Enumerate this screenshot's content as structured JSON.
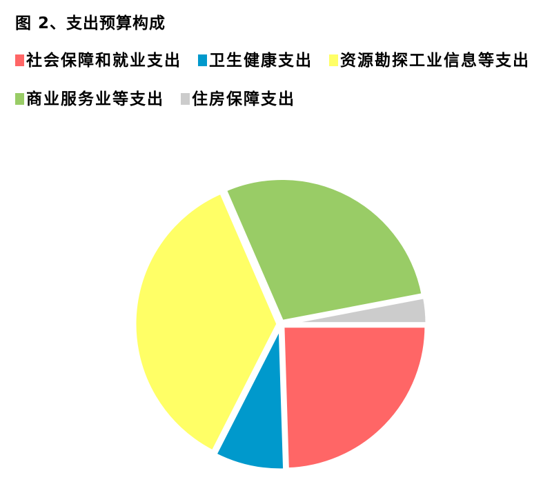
{
  "chart_data": {
    "type": "pie",
    "title": "图 2、支出预算构成",
    "legend_position": "top",
    "categories": [
      "社会保障和就业支出",
      "卫生健康支出",
      "资源勘探工业信息等支出",
      "商业服务业等支出",
      "住房保障支出"
    ],
    "values": [
      24.5,
      8,
      36,
      28.5,
      3
    ],
    "colors": [
      "#ff6666",
      "#0099cc",
      "#ffff66",
      "#99cc66",
      "#cccccc"
    ],
    "start_angle_deg": 0,
    "direction": "clockwise"
  }
}
